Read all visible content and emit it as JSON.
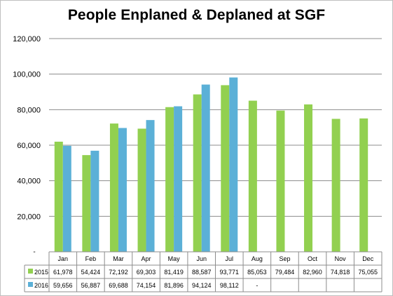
{
  "chart_data": {
    "type": "bar",
    "title": "People Enplaned & Deplaned at SGF",
    "categories": [
      "Jan",
      "Feb",
      "Mar",
      "Apr",
      "May",
      "Jun",
      "Jul",
      "Aug",
      "Sep",
      "Oct",
      "Nov",
      "Dec"
    ],
    "series": [
      {
        "name": "2015",
        "color": "#92d050",
        "values": [
          61978,
          54424,
          72192,
          69303,
          81419,
          88587,
          93771,
          85053,
          79484,
          82960,
          74818,
          75055
        ],
        "labels": [
          "61,978",
          "54,424",
          "72,192",
          "69,303",
          "81,419",
          "88,587",
          "93,771",
          "85,053",
          "79,484",
          "82,960",
          "74,818",
          "75,055"
        ]
      },
      {
        "name": "2016",
        "color": "#5bb0d7",
        "values": [
          59656,
          56887,
          69688,
          74154,
          81896,
          94124,
          98112,
          null,
          null,
          null,
          null,
          null
        ],
        "labels": [
          "59,656",
          "56,887",
          "69,688",
          "74,154",
          "81,896",
          "94,124",
          "98,112",
          "-",
          "",
          "",
          "",
          ""
        ]
      }
    ],
    "ylim": [
      0,
      120000
    ],
    "yticks": [
      0,
      20000,
      40000,
      60000,
      80000,
      100000,
      120000
    ],
    "ytick_labels": [
      "-",
      "20,000",
      "40,000",
      "60,000",
      "80,000",
      "100,000",
      "120,000"
    ],
    "grid": true,
    "legend": "data-table",
    "xlabel": "",
    "ylabel": ""
  }
}
